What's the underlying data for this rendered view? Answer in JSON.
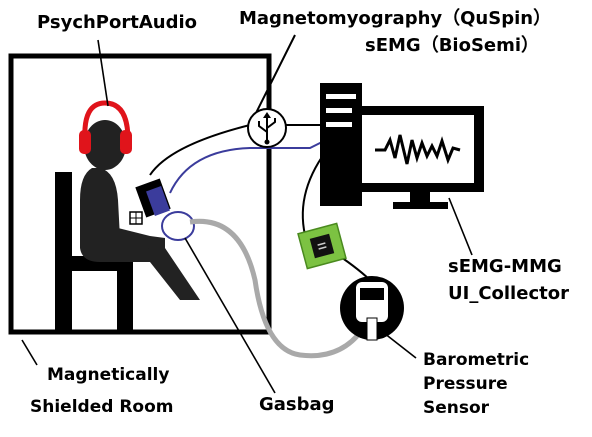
{
  "labels": {
    "psych_port_audio": "PsychPortAudio",
    "magnetomyography": "Magnetomyography（QuSpin）",
    "semg_biosemi": "sEMG（BioSemi）",
    "semg_mmg_line1": "sEMG-MMG",
    "semg_mmg_line2": "UI_Collector",
    "shielded_room_line1": "Magnetically",
    "shielded_room_line2": "Shielded Room",
    "gasbag": "Gasbag",
    "barometric_line1": "Barometric",
    "barometric_line2": "Pressure",
    "barometric_line3": "Sensor"
  },
  "icons": {
    "usb": "usb-icon",
    "headphones": "headphones-icon",
    "computer": "computer-icon",
    "chip": "chip-icon",
    "pressure_sensor": "pressure-sensor-icon"
  },
  "colors": {
    "headphones": "#e0141b",
    "semg_cable": "#3b3c9c",
    "gasbag_tube": "#a9a9a9",
    "chip_board": "#7cc242",
    "sensor_blue": "#3b3c9c"
  }
}
